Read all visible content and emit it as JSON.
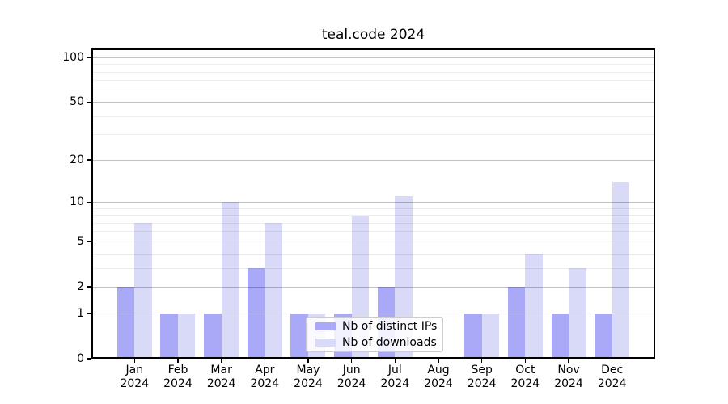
{
  "title": "teal.code 2024",
  "chart_data": {
    "type": "bar",
    "title": "teal.code 2024",
    "categories": [
      "Jan 2024",
      "Feb 2024",
      "Mar 2024",
      "Apr 2024",
      "May 2024",
      "Jun 2024",
      "Jul 2024",
      "Aug 2024",
      "Sep 2024",
      "Oct 2024",
      "Nov 2024",
      "Dec 2024"
    ],
    "category_months": [
      "Jan",
      "Feb",
      "Mar",
      "Apr",
      "May",
      "Jun",
      "Jul",
      "Aug",
      "Sep",
      "Oct",
      "Nov",
      "Dec"
    ],
    "category_year": "2024",
    "series": [
      {
        "name": "Nb of distinct IPs",
        "color": "#a9a9f8",
        "values": [
          2,
          1,
          1,
          3,
          1,
          1,
          2,
          0,
          1,
          2,
          1,
          1
        ]
      },
      {
        "name": "Nb of downloads",
        "color": "#d9d9f8",
        "values": [
          7,
          1,
          10,
          7,
          1,
          8,
          11,
          0,
          1,
          4,
          3,
          14
        ]
      }
    ],
    "xlabel": "",
    "ylabel": "",
    "yscale": "log1p",
    "ylim": [
      0,
      116
    ],
    "y_major_ticks": [
      0,
      1,
      2,
      5,
      10,
      20,
      50,
      100
    ],
    "y_minor_ticks": [
      3,
      4,
      6,
      7,
      8,
      9,
      30,
      40,
      60,
      70,
      80,
      90
    ],
    "grid": true,
    "legend_position": "lower center"
  }
}
